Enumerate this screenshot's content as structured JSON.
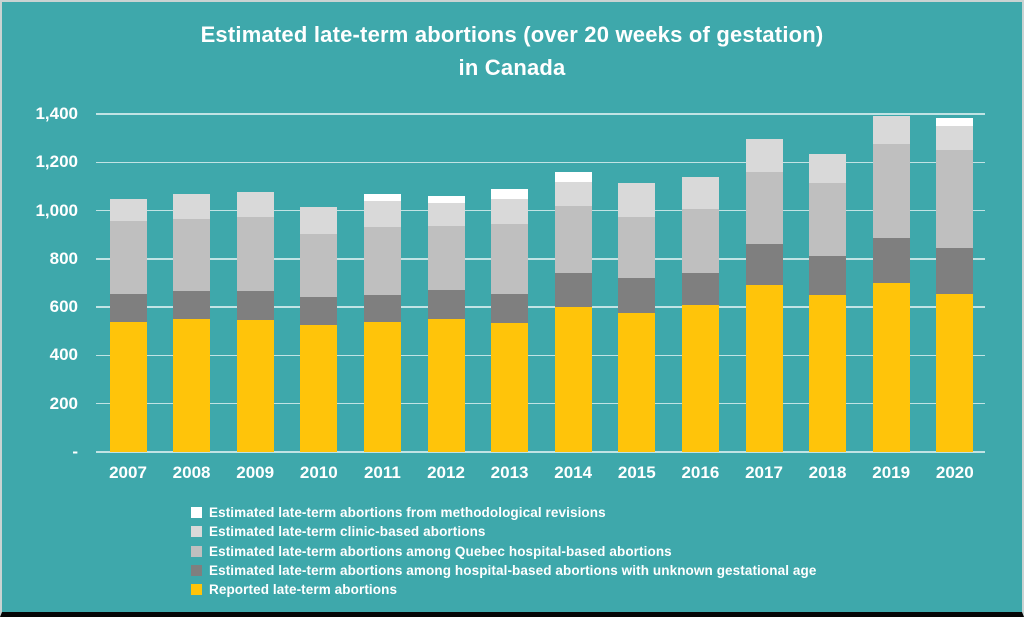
{
  "title": {
    "line1": "Estimated late-term abortions (over 20 weeks of gestation)",
    "line2": "in Canada"
  },
  "colors": {
    "background": "#3EA8AB",
    "border": "#C9D3D2",
    "bottom_strip": "#060606",
    "text": "#FFFFFF",
    "gridline": "rgba(255,255,255,0.68)"
  },
  "chart_data": {
    "type": "bar",
    "stacked": true,
    "title": "Estimated late-term abortions (over 20 weeks of gestation) in Canada",
    "xlabel": "",
    "ylabel": "",
    "ylim": [
      0,
      1400
    ],
    "grid": true,
    "legend_position": "bottom-left",
    "categories": [
      "2007",
      "2008",
      "2009",
      "2010",
      "2011",
      "2012",
      "2013",
      "2014",
      "2015",
      "2016",
      "2017",
      "2018",
      "2019",
      "2020"
    ],
    "series": [
      {
        "key": "reported",
        "name": "Reported late-term abortions",
        "color": "#FFC40A",
        "values": [
          540,
          550,
          545,
          525,
          540,
          550,
          535,
          600,
          575,
          610,
          690,
          650,
          700,
          655
        ]
      },
      {
        "key": "unknown-gestational-age",
        "name": "Estimated late-term abortions among hospital-based abortions with unknown gestational age",
        "color": "#7F7F7F",
        "values": [
          115,
          115,
          120,
          115,
          110,
          120,
          120,
          140,
          145,
          130,
          170,
          160,
          185,
          190
        ]
      },
      {
        "key": "quebec-hospital",
        "name": "Estimated late-term abortions among Quebec hospital-based abortions",
        "color": "#BFBFBF",
        "values": [
          300,
          300,
          310,
          265,
          280,
          265,
          290,
          280,
          255,
          265,
          300,
          305,
          390,
          405
        ]
      },
      {
        "key": "clinic-based",
        "name": "Estimated late-term clinic-based abortions",
        "color": "#D9D9D9",
        "values": [
          95,
          105,
          100,
          110,
          110,
          95,
          105,
          100,
          140,
          135,
          135,
          120,
          115,
          100
        ]
      },
      {
        "key": "methodological-revisions",
        "name": "Estimated late-term abortions from methodological revisions",
        "color": "#FFFFFF",
        "values": [
          0,
          0,
          0,
          0,
          30,
          30,
          40,
          40,
          0,
          0,
          0,
          0,
          0,
          35
        ]
      }
    ],
    "totals": [
      1050,
      1070,
      1075,
      1015,
      1070,
      1060,
      1090,
      1160,
      1115,
      1140,
      1295,
      1235,
      1390,
      1385
    ],
    "y_ticks": [
      {
        "label": "1,400",
        "value": 1400
      },
      {
        "label": "1,200",
        "value": 1200
      },
      {
        "label": "1,000",
        "value": 1000
      },
      {
        "label": "800",
        "value": 800
      },
      {
        "label": "600",
        "value": 600
      },
      {
        "label": "400",
        "value": 400
      },
      {
        "label": "200",
        "value": 200
      },
      {
        "label": "-",
        "value": 0
      }
    ],
    "legend_order_top_to_bottom": [
      "methodological-revisions",
      "clinic-based",
      "quebec-hospital",
      "unknown-gestational-age",
      "reported"
    ]
  }
}
